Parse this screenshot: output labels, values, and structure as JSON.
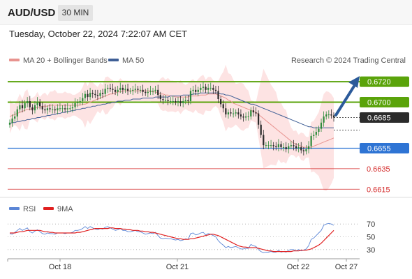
{
  "header": {
    "pair": "AUD/USD",
    "timeframe": "30 MIN",
    "datetime": "Tuesday, October 22, 2024 7:22:07 AM CET"
  },
  "legend": {
    "ma20_label": "MA 20 + Bollinger Bands",
    "ma50_label": "MA 50",
    "credit": "Research © 2024 Trading Central",
    "rsi_label": "RSI",
    "ma9_label": "9MA"
  },
  "colors": {
    "resistance": "#5aa30a",
    "support": "#2e74d4",
    "target": "#d42a2a",
    "last_price": "#2b2b2b",
    "ma20": "#e8938f",
    "ma50": "#3f5f96",
    "bollinger_fill": "#fde3e3",
    "candle": "#2a2a2a",
    "candle_up": "#2e8b3b",
    "rsi": "#5b86d6",
    "rsi_ma": "#e02020",
    "arrow": "#2b5a9a"
  },
  "chart_data": [
    {
      "type": "candlestick",
      "title": "",
      "x_ticks": [
        "Oct 18",
        "Oct 21",
        "Oct 22",
        "Oct 27"
      ],
      "ylim": [
        0.6607,
        0.6733
      ],
      "levels": [
        {
          "label": "0.6720",
          "value": 0.672,
          "kind": "resistance"
        },
        {
          "label": "0.6700",
          "value": 0.67,
          "kind": "resistance"
        },
        {
          "label": "0.6685",
          "value": 0.6685,
          "kind": "last"
        },
        {
          "label": "0.6655",
          "value": 0.6655,
          "kind": "support"
        },
        {
          "label": "0.6635",
          "value": 0.6635,
          "kind": "target"
        },
        {
          "label": "0.6615",
          "value": 0.6615,
          "kind": "target"
        }
      ],
      "close_values": [
        0.668,
        0.6684,
        0.6686,
        0.6693,
        0.6697,
        0.6694,
        0.6699,
        0.6701,
        0.6695,
        0.6692,
        0.6697,
        0.67,
        0.6696,
        0.6693,
        0.6692,
        0.6694,
        0.6693,
        0.6693,
        0.6692,
        0.6694,
        0.6694,
        0.6694,
        0.6693,
        0.6694,
        0.6694,
        0.6695,
        0.6699,
        0.67,
        0.6701,
        0.6704,
        0.6708,
        0.6705,
        0.6709,
        0.6708,
        0.6707,
        0.6706,
        0.6709,
        0.6708,
        0.6713,
        0.6714,
        0.6713,
        0.6712,
        0.671,
        0.6712,
        0.6714,
        0.6712,
        0.6713,
        0.6711,
        0.6711,
        0.6712,
        0.6713,
        0.6712,
        0.6712,
        0.671,
        0.6709,
        0.671,
        0.6711,
        0.6711,
        0.6712,
        0.6707,
        0.6703,
        0.6702,
        0.6702,
        0.6701,
        0.6701,
        0.6701,
        0.67,
        0.6701,
        0.6699,
        0.6701,
        0.6702,
        0.6701,
        0.6711,
        0.6712,
        0.671,
        0.6712,
        0.6714,
        0.6715,
        0.6712,
        0.6714,
        0.6714,
        0.6712,
        0.6711,
        0.6703,
        0.6698,
        0.6694,
        0.6688,
        0.669,
        0.6689,
        0.6689,
        0.669,
        0.6688,
        0.6686,
        0.6685,
        0.6686,
        0.6686,
        0.6692,
        0.669,
        0.6689,
        0.6678,
        0.6668,
        0.6658,
        0.6658,
        0.6658,
        0.6658,
        0.6657,
        0.6656,
        0.6659,
        0.6656,
        0.6656,
        0.6654,
        0.6657,
        0.6658,
        0.6657,
        0.6655,
        0.6656,
        0.6653,
        0.6652,
        0.6654,
        0.6657,
        0.6667,
        0.6668,
        0.6671,
        0.6674,
        0.668,
        0.6686,
        0.6688,
        0.6688,
        0.6687,
        0.6685
      ],
      "ma20_values": [
        0.6686,
        0.6687,
        0.6688,
        0.6689,
        0.669,
        0.6691,
        0.6692,
        0.6693,
        0.6693,
        0.6694,
        0.6694,
        0.6695,
        0.6695,
        0.6696,
        0.6696,
        0.6696,
        0.6697,
        0.6697,
        0.6697,
        0.6697,
        0.6697,
        0.6697,
        0.6697,
        0.6697,
        0.6697,
        0.6697,
        0.6697,
        0.6697,
        0.6697,
        0.6698,
        0.6698,
        0.6699,
        0.67,
        0.6701,
        0.6702,
        0.6703,
        0.6704,
        0.6705,
        0.6706,
        0.6707,
        0.6708,
        0.6708,
        0.6709,
        0.671,
        0.671,
        0.6711,
        0.6711,
        0.6711,
        0.6711,
        0.6711,
        0.6711,
        0.6711,
        0.6711,
        0.6711,
        0.6711,
        0.6711,
        0.6711,
        0.671,
        0.671,
        0.6709,
        0.6708,
        0.6708,
        0.6707,
        0.6707,
        0.6706,
        0.6706,
        0.6705,
        0.6705,
        0.6705,
        0.6705,
        0.6705,
        0.6705,
        0.6706,
        0.6706,
        0.6706,
        0.6706,
        0.6707,
        0.6707,
        0.6707,
        0.6708,
        0.6708,
        0.6708,
        0.6708,
        0.6707,
        0.6706,
        0.6705,
        0.6704,
        0.6702,
        0.6701,
        0.6699,
        0.6698,
        0.6697,
        0.6696,
        0.6695,
        0.6694,
        0.6693,
        0.6692,
        0.6691,
        0.669,
        0.6688,
        0.6686,
        0.6684,
        0.6682,
        0.668,
        0.6678,
        0.6676,
        0.6674,
        0.6672,
        0.667,
        0.6668,
        0.6666,
        0.6664,
        0.6662,
        0.666,
        0.6659,
        0.6658,
        0.6657,
        0.6656,
        0.6656,
        0.6656,
        0.6656,
        0.6657,
        0.6658,
        0.6659,
        0.666,
        0.6661,
        0.6662,
        0.6663,
        0.6664,
        0.6665
      ],
      "ma50_values": [
        0.6679,
        0.668,
        0.668,
        0.6681,
        0.6681,
        0.6682,
        0.6682,
        0.6683,
        0.6683,
        0.6684,
        0.6684,
        0.6685,
        0.6685,
        0.6686,
        0.6686,
        0.6687,
        0.6687,
        0.6688,
        0.6688,
        0.6689,
        0.6689,
        0.669,
        0.669,
        0.6691,
        0.6691,
        0.6692,
        0.6692,
        0.6693,
        0.6693,
        0.6694,
        0.6694,
        0.6695,
        0.6695,
        0.6696,
        0.6696,
        0.6697,
        0.6697,
        0.6698,
        0.6698,
        0.6699,
        0.6699,
        0.67,
        0.67,
        0.6701,
        0.6701,
        0.6701,
        0.6702,
        0.6702,
        0.6702,
        0.6703,
        0.6703,
        0.6703,
        0.6703,
        0.6704,
        0.6704,
        0.6704,
        0.6704,
        0.6704,
        0.6705,
        0.6705,
        0.6705,
        0.6705,
        0.6705,
        0.6705,
        0.6706,
        0.6706,
        0.6706,
        0.6706,
        0.6706,
        0.6707,
        0.6707,
        0.6707,
        0.6707,
        0.6708,
        0.6708,
        0.6708,
        0.6709,
        0.6709,
        0.6709,
        0.6709,
        0.6709,
        0.6709,
        0.6709,
        0.6709,
        0.6708,
        0.6708,
        0.6707,
        0.6707,
        0.6706,
        0.6705,
        0.6704,
        0.6703,
        0.6702,
        0.6701,
        0.67,
        0.6699,
        0.6698,
        0.6698,
        0.6697,
        0.6696,
        0.6695,
        0.6694,
        0.6693,
        0.6692,
        0.6691,
        0.669,
        0.6689,
        0.6688,
        0.6687,
        0.6686,
        0.6685,
        0.6684,
        0.6683,
        0.6682,
        0.6681,
        0.668,
        0.6679,
        0.6678,
        0.6677,
        0.6676,
        0.6676,
        0.6675,
        0.6675,
        0.6675,
        0.6675,
        0.6675,
        0.6675,
        0.6675,
        0.6675,
        0.6675
      ]
    },
    {
      "type": "line",
      "title": "",
      "ylim": [
        20,
        80
      ],
      "y_ticks": [
        70,
        50,
        30
      ],
      "x_ticks": [
        "Oct 18",
        "Oct 21",
        "Oct 22",
        "Oct 27"
      ],
      "series": [
        {
          "name": "RSI",
          "values": [
            55,
            54,
            57,
            60,
            63,
            60,
            62,
            64,
            58,
            56,
            59,
            61,
            58,
            55,
            54,
            56,
            55,
            55,
            54,
            56,
            56,
            56,
            55,
            56,
            56,
            57,
            60,
            60,
            61,
            63,
            66,
            63,
            66,
            64,
            62,
            61,
            63,
            62,
            65,
            66,
            64,
            62,
            60,
            61,
            63,
            60,
            60,
            58,
            58,
            59,
            60,
            58,
            58,
            56,
            54,
            55,
            56,
            55,
            57,
            52,
            48,
            47,
            48,
            47,
            47,
            46,
            45,
            46,
            44,
            45,
            47,
            46,
            55,
            56,
            53,
            54,
            56,
            57,
            53,
            55,
            54,
            52,
            50,
            44,
            40,
            37,
            33,
            35,
            33,
            34,
            35,
            33,
            31,
            31,
            32,
            32,
            38,
            36,
            35,
            30,
            27,
            25,
            26,
            26,
            27,
            26,
            26,
            29,
            26,
            27,
            26,
            29,
            30,
            30,
            28,
            30,
            28,
            29,
            31,
            36,
            46,
            48,
            52,
            56,
            60,
            68,
            70,
            71,
            70,
            68
          ]
        },
        {
          "name": "9MA",
          "values": [
            56,
            56,
            56,
            57,
            58,
            58,
            59,
            60,
            60,
            60,
            60,
            60,
            60,
            59,
            58,
            58,
            57,
            57,
            56,
            56,
            56,
            56,
            56,
            56,
            56,
            56,
            56,
            57,
            57,
            58,
            59,
            60,
            61,
            62,
            63,
            63,
            63,
            63,
            63,
            63,
            64,
            64,
            63,
            63,
            63,
            62,
            62,
            61,
            61,
            60,
            60,
            60,
            59,
            59,
            58,
            58,
            57,
            57,
            56,
            55,
            54,
            53,
            52,
            51,
            50,
            49,
            48,
            47,
            47,
            46,
            46,
            46,
            47,
            47,
            48,
            49,
            50,
            51,
            52,
            53,
            54,
            54,
            53,
            52,
            50,
            48,
            46,
            44,
            42,
            40,
            38,
            36,
            35,
            34,
            34,
            33,
            33,
            33,
            33,
            32,
            31,
            30,
            29,
            28,
            28,
            27,
            27,
            27,
            27,
            27,
            27,
            27,
            27,
            28,
            28,
            28,
            29,
            29,
            29,
            30,
            31,
            33,
            35,
            37,
            40,
            44,
            48,
            52,
            56,
            60
          ]
        }
      ]
    }
  ]
}
